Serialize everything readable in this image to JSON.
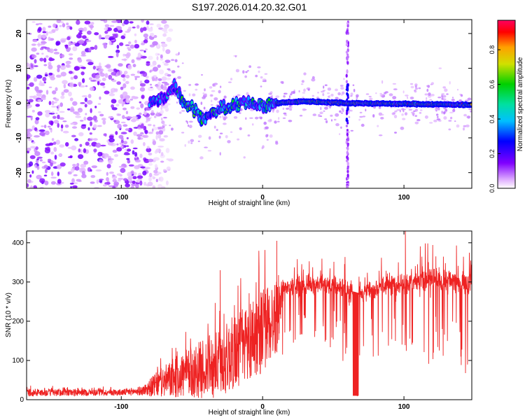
{
  "title": "S197.2026.014.20.32.G01",
  "chart_data": [
    {
      "type": "heatmap",
      "name": "spectrogram",
      "xlabel": "Height of straight line (km)",
      "ylabel": "Frequency (Hz)",
      "xlim": [
        -167,
        148
      ],
      "ylim": [
        -24.5,
        24
      ],
      "xticks": [
        -100,
        0,
        100
      ],
      "xtick_labels": [
        "-100",
        "0",
        "100"
      ],
      "yticks": [
        -20,
        -10,
        0,
        10,
        20
      ],
      "ytick_labels": [
        "-20",
        "-10",
        "0",
        "10",
        "20"
      ],
      "grid": false,
      "colorbar": {
        "label": "Normalized spectral amplitude",
        "range": [
          0,
          0.97
        ],
        "ticks": [
          0.0,
          0.2,
          0.4,
          0.6,
          0.8
        ],
        "tick_labels": [
          "0.0",
          "0.2",
          "0.4",
          "0.6",
          "0.8"
        ]
      },
      "features": {
        "noise_region_x": [
          -167,
          -80
        ],
        "signal_onset_x": -80,
        "line_center_freq_hz": 0,
        "line_freq_offsets_by_x": [
          [
            -80,
            0
          ],
          [
            -70,
            1.5
          ],
          [
            -62,
            5
          ],
          [
            -55,
            0
          ],
          [
            -48,
            -2
          ],
          [
            -42,
            -4.5
          ],
          [
            -35,
            -3
          ],
          [
            -28,
            -1.5
          ],
          [
            -20,
            -1
          ],
          [
            -10,
            0.5
          ],
          [
            0,
            -1
          ],
          [
            10,
            0
          ],
          [
            30,
            0.5
          ],
          [
            60,
            0
          ],
          [
            148,
            -0.5
          ]
        ],
        "vertical_artifact_x": 60
      }
    },
    {
      "type": "line",
      "name": "snr",
      "xlabel": "Height of straight line (km)",
      "ylabel": "SNR (10 * v/v)",
      "xlim": [
        -167,
        148
      ],
      "ylim": [
        0,
        430
      ],
      "xticks": [
        -100,
        0,
        100
      ],
      "xtick_labels": [
        "-100",
        "0",
        "100"
      ],
      "yticks": [
        0,
        100,
        200,
        300,
        400
      ],
      "ytick_labels": [
        "0",
        "100",
        "200",
        "300",
        "400"
      ],
      "grid": false,
      "color": "#ee2222",
      "series_envelope": {
        "x": [
          -167,
          -100,
          -85,
          -75,
          -60,
          -45,
          -30,
          -20,
          -10,
          0,
          10,
          15,
          20,
          40,
          50,
          60,
          70,
          80,
          100,
          120,
          148
        ],
        "mean": [
          20,
          20,
          25,
          45,
          70,
          90,
          110,
          140,
          170,
          200,
          230,
          285,
          290,
          295,
          290,
          280,
          270,
          285,
          300,
          305,
          300
        ],
        "spread": [
          12,
          10,
          15,
          40,
          70,
          90,
          110,
          120,
          130,
          140,
          120,
          40,
          40,
          40,
          40,
          50,
          45,
          45,
          50,
          55,
          60
        ]
      },
      "peaks": [
        [
          10,
          405
        ],
        [
          101,
          438
        ],
        [
          -30,
          330
        ]
      ],
      "dropout_x": [
        64,
        68
      ],
      "dropout_value": 10
    }
  ]
}
